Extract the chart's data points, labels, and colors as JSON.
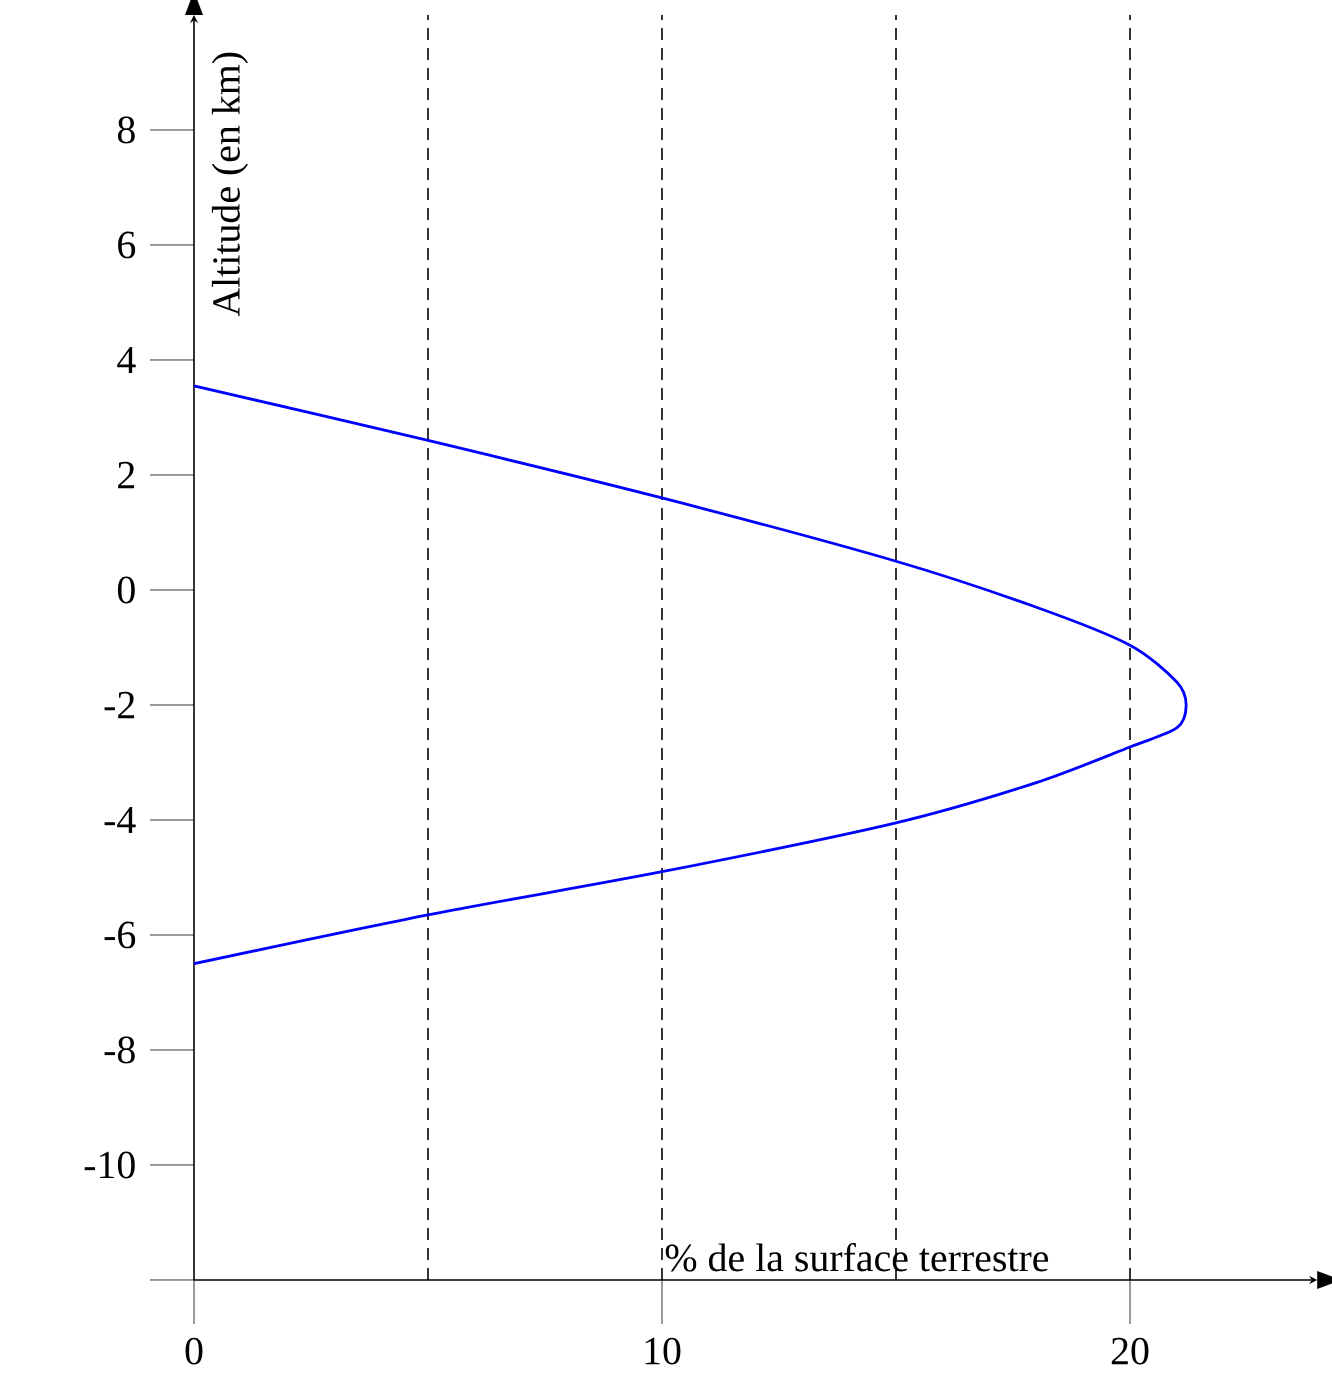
{
  "chart_data": {
    "type": "line",
    "xlabel": "% de la surface terrestre",
    "ylabel": "Altitude (en km)",
    "xlim": [
      0,
      24
    ],
    "ylim": [
      -12,
      10
    ],
    "xticks": [
      0,
      10,
      20
    ],
    "yticks": [
      {
        "value": -12,
        "label": null
      },
      -10,
      -8,
      -6,
      -4,
      -2,
      0,
      2,
      4,
      6,
      8
    ],
    "series": [
      {
        "color": "#0000ff",
        "x": [
          0,
          5,
          10,
          15,
          18,
          20,
          21,
          21.2,
          21,
          20,
          18,
          15,
          10,
          5,
          0
        ],
        "values": [
          3.55,
          2.6,
          1.6,
          0.5,
          -0.3,
          -0.96,
          -1.6,
          -2,
          -2.4,
          -2.73,
          -3.35,
          -4.05,
          -4.9,
          -5.65,
          -6.5
        ]
      }
    ],
    "ref_lines": [
      {
        "axis": "x",
        "value": 5,
        "line_style": "dashed"
      },
      {
        "axis": "x",
        "value": 10,
        "line_style": "dashed"
      },
      {
        "axis": "x",
        "value": 15,
        "line_style": "dashed"
      },
      {
        "axis": "x",
        "value": 20,
        "line_style": "dashed"
      }
    ]
  }
}
